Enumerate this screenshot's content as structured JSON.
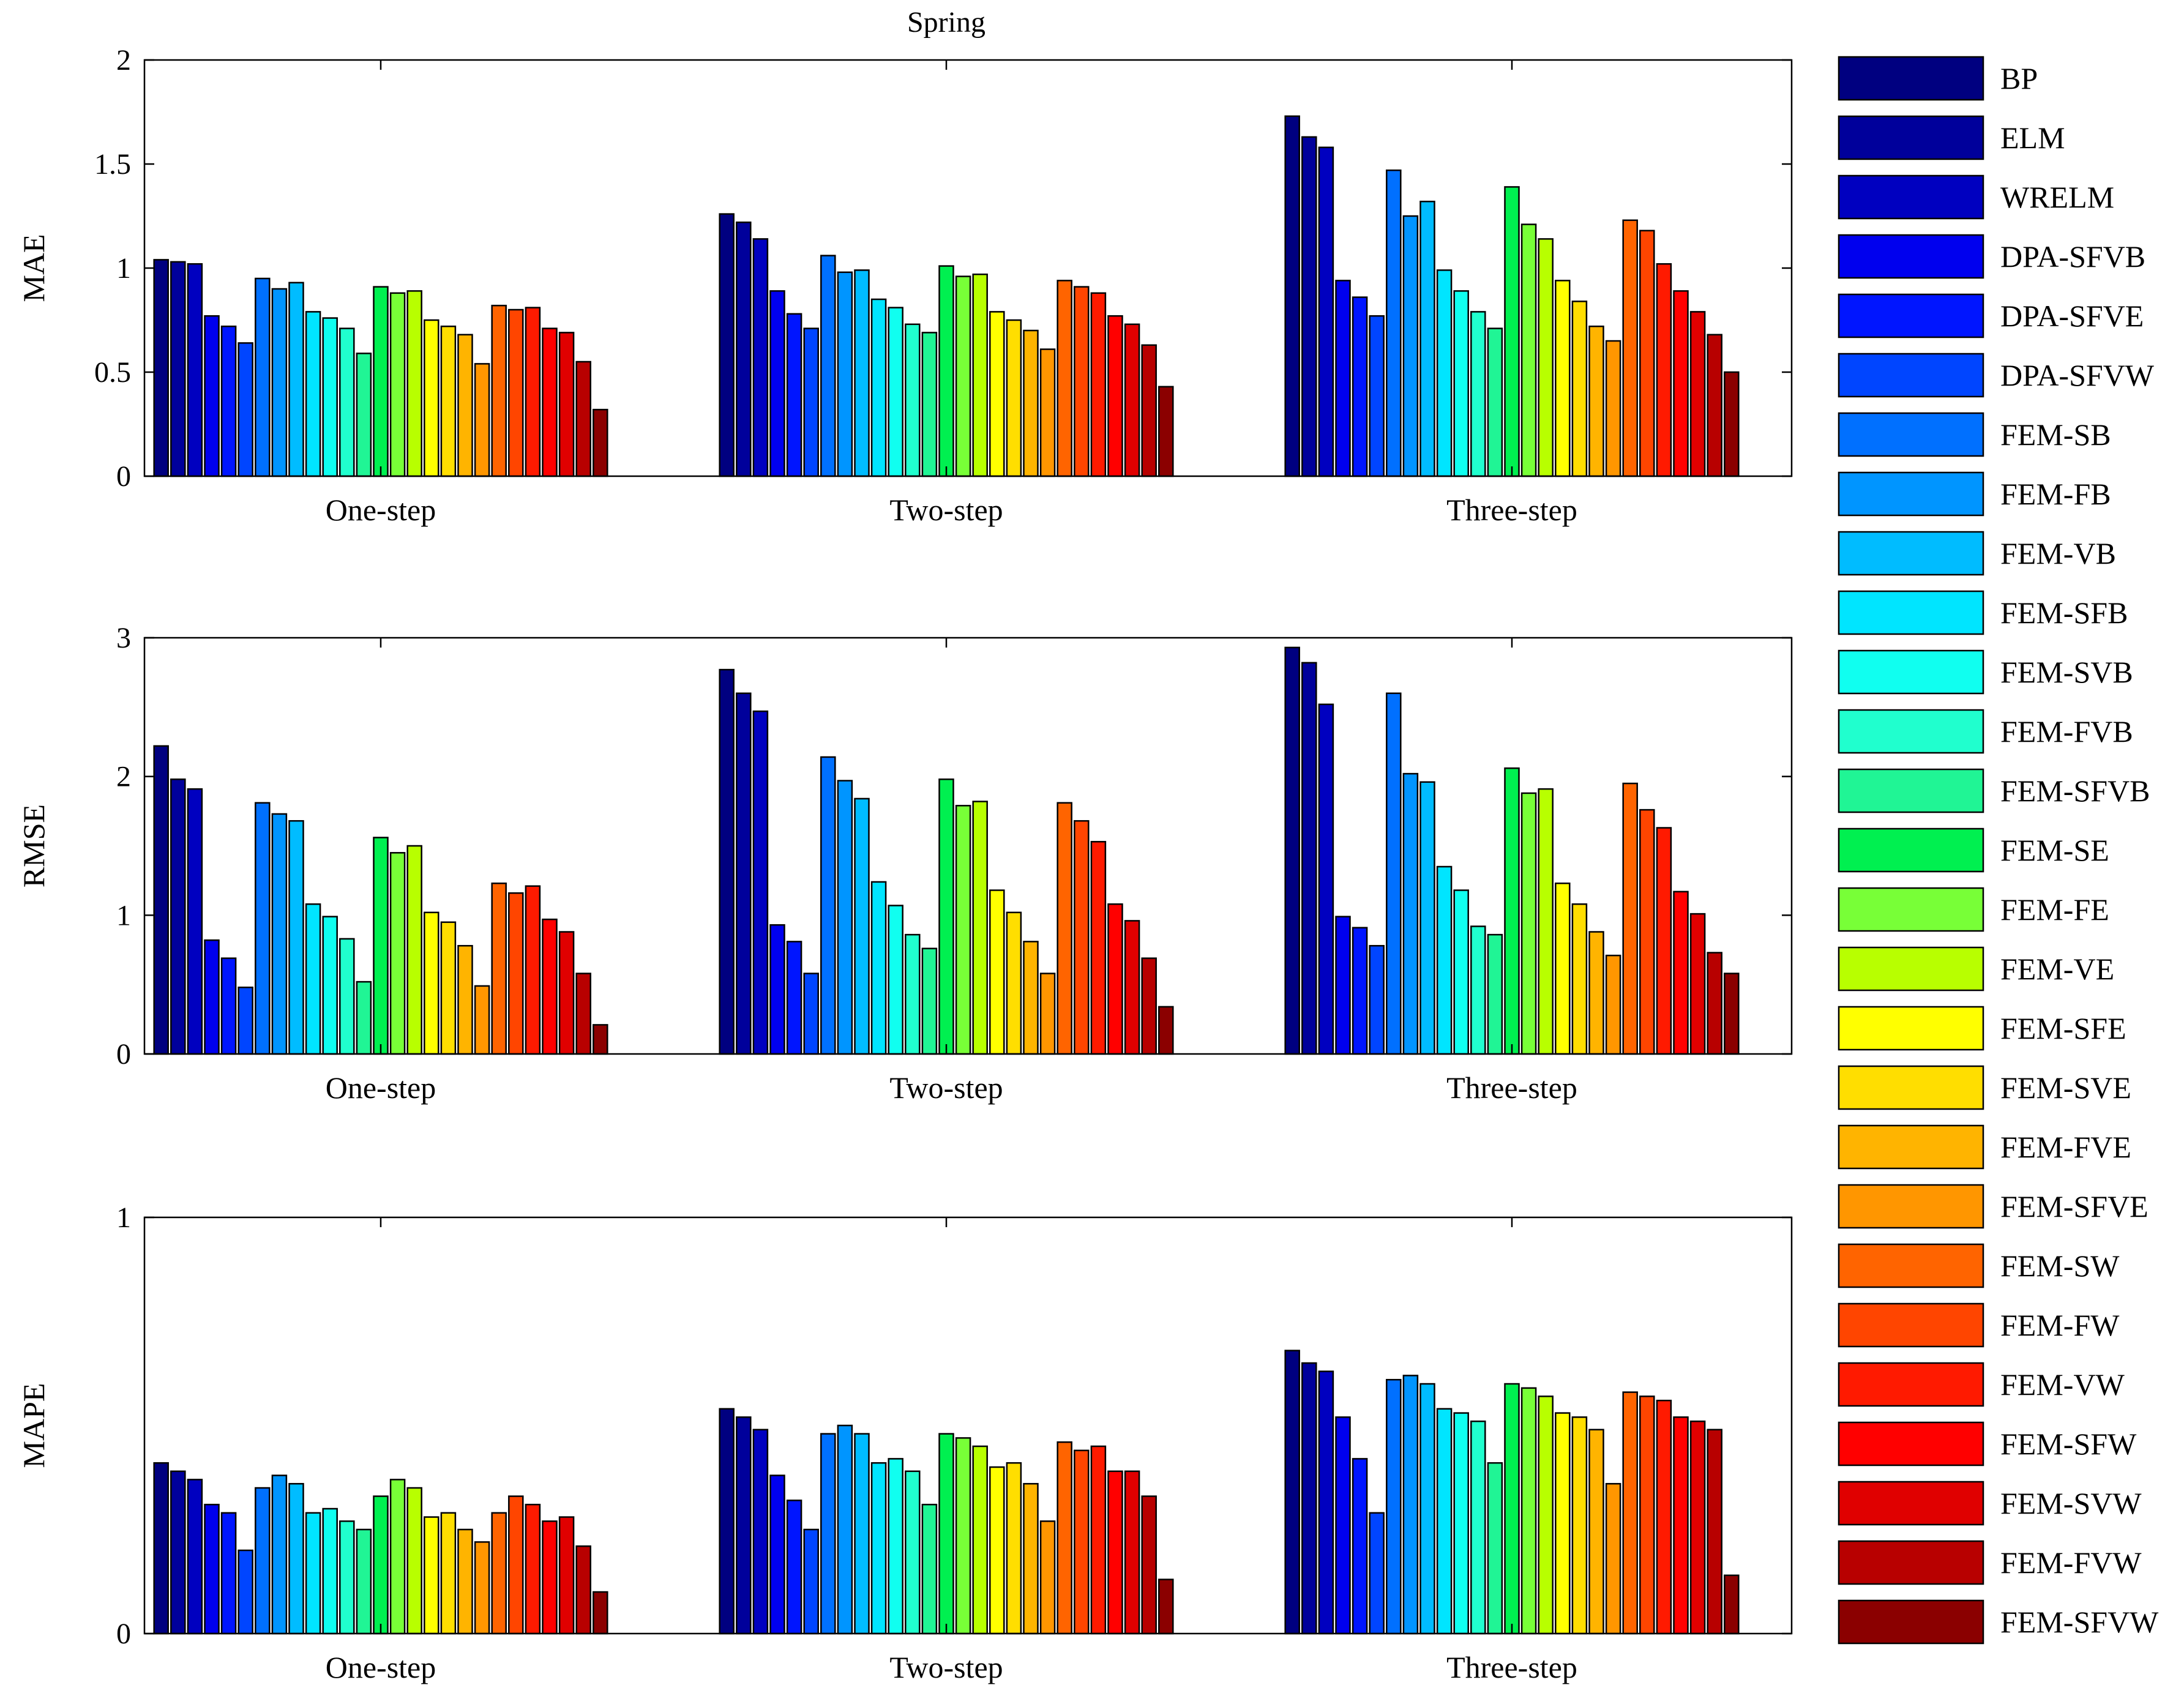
{
  "figure_title": "Spring",
  "chart_data": [
    {
      "type": "bar",
      "title": "Spring",
      "ylabel": "MAE",
      "xlabel": "",
      "ylim": [
        0,
        2
      ],
      "yticks": [
        0,
        0.5,
        1,
        1.5,
        2
      ],
      "ytick_labels": [
        "0",
        "0.5",
        "1",
        "1.5",
        "2"
      ],
      "categories": [
        "One-step",
        "Two-step",
        "Three-step"
      ],
      "values_by_category": [
        [
          1.04,
          1.03,
          1.02,
          0.77,
          0.72,
          0.64,
          0.95,
          0.9,
          0.93,
          0.79,
          0.76,
          0.71,
          0.59,
          0.91,
          0.88,
          0.89,
          0.75,
          0.72,
          0.68,
          0.54,
          0.82,
          0.8,
          0.81,
          0.71,
          0.69,
          0.55,
          0.32
        ],
        [
          1.26,
          1.22,
          1.14,
          0.89,
          0.78,
          0.71,
          1.06,
          0.98,
          0.99,
          0.85,
          0.81,
          0.73,
          0.69,
          1.01,
          0.96,
          0.97,
          0.79,
          0.75,
          0.7,
          0.61,
          0.94,
          0.91,
          0.88,
          0.77,
          0.73,
          0.63,
          0.43
        ],
        [
          1.73,
          1.63,
          1.58,
          0.94,
          0.86,
          0.77,
          1.47,
          1.25,
          1.32,
          0.99,
          0.89,
          0.79,
          0.71,
          1.39,
          1.21,
          1.14,
          0.94,
          0.84,
          0.72,
          0.65,
          1.23,
          1.18,
          1.02,
          0.89,
          0.79,
          0.68,
          0.5
        ]
      ]
    },
    {
      "type": "bar",
      "ylabel": "RMSE",
      "xlabel": "",
      "ylim": [
        0,
        3
      ],
      "yticks": [
        0,
        1,
        2,
        3
      ],
      "ytick_labels": [
        "0",
        "1",
        "2",
        "3"
      ],
      "categories": [
        "One-step",
        "Two-step",
        "Three-step"
      ],
      "values_by_category": [
        [
          2.22,
          1.98,
          1.91,
          0.82,
          0.69,
          0.48,
          1.81,
          1.73,
          1.68,
          1.08,
          0.99,
          0.83,
          0.52,
          1.56,
          1.45,
          1.5,
          1.02,
          0.95,
          0.78,
          0.49,
          1.23,
          1.16,
          1.21,
          0.97,
          0.88,
          0.58,
          0.21
        ],
        [
          2.77,
          2.6,
          2.47,
          0.93,
          0.81,
          0.58,
          2.14,
          1.97,
          1.84,
          1.24,
          1.07,
          0.86,
          0.76,
          1.98,
          1.79,
          1.82,
          1.18,
          1.02,
          0.81,
          0.58,
          1.81,
          1.68,
          1.53,
          1.08,
          0.96,
          0.69,
          0.34
        ],
        [
          2.93,
          2.82,
          2.52,
          0.99,
          0.91,
          0.78,
          2.6,
          2.02,
          1.96,
          1.35,
          1.18,
          0.92,
          0.86,
          2.06,
          1.88,
          1.91,
          1.23,
          1.08,
          0.88,
          0.71,
          1.95,
          1.76,
          1.63,
          1.17,
          1.01,
          0.73,
          0.58
        ]
      ]
    },
    {
      "type": "bar",
      "ylabel": "MAPE",
      "xlabel": "",
      "ylim": [
        0,
        1
      ],
      "yticks": [
        0,
        1
      ],
      "ytick_labels": [
        "0",
        "1"
      ],
      "categories": [
        "One-step",
        "Two-step",
        "Three-step"
      ],
      "values_by_category": [
        [
          0.41,
          0.39,
          0.37,
          0.31,
          0.29,
          0.2,
          0.35,
          0.38,
          0.36,
          0.29,
          0.3,
          0.27,
          0.25,
          0.33,
          0.37,
          0.35,
          0.28,
          0.29,
          0.25,
          0.22,
          0.29,
          0.33,
          0.31,
          0.27,
          0.28,
          0.21,
          0.1
        ],
        [
          0.54,
          0.52,
          0.49,
          0.38,
          0.32,
          0.25,
          0.48,
          0.5,
          0.48,
          0.41,
          0.42,
          0.39,
          0.31,
          0.48,
          0.47,
          0.45,
          0.4,
          0.41,
          0.36,
          0.27,
          0.46,
          0.44,
          0.45,
          0.39,
          0.39,
          0.33,
          0.13
        ],
        [
          0.68,
          0.65,
          0.63,
          0.52,
          0.42,
          0.29,
          0.61,
          0.62,
          0.6,
          0.54,
          0.53,
          0.51,
          0.41,
          0.6,
          0.59,
          0.57,
          0.53,
          0.52,
          0.49,
          0.36,
          0.58,
          0.57,
          0.56,
          0.52,
          0.51,
          0.49,
          0.14
        ]
      ]
    }
  ],
  "legend": {
    "placement": "right",
    "items": [
      {
        "label": "BP",
        "color": "#000080"
      },
      {
        "label": "ELM",
        "color": "#00009b"
      },
      {
        "label": "WRELM",
        "color": "#0000c0"
      },
      {
        "label": "DPA-SFVB",
        "color": "#0000ee"
      },
      {
        "label": "DPA-SFVE",
        "color": "#0015ff"
      },
      {
        "label": "DPA-SFVW",
        "color": "#0045ff"
      },
      {
        "label": "FEM-SB",
        "color": "#0070ff"
      },
      {
        "label": "FEM-FB",
        "color": "#0095ff"
      },
      {
        "label": "FEM-VB",
        "color": "#00bcff"
      },
      {
        "label": "FEM-SFB",
        "color": "#00e5ff"
      },
      {
        "label": "FEM-SVB",
        "color": "#10fff0"
      },
      {
        "label": "FEM-FVB",
        "color": "#20ffce"
      },
      {
        "label": "FEM-SFVB",
        "color": "#20f595"
      },
      {
        "label": "FEM-SE",
        "color": "#00f050"
      },
      {
        "label": "FEM-FE",
        "color": "#78ff37"
      },
      {
        "label": "FEM-VE",
        "color": "#b8ff00"
      },
      {
        "label": "FEM-SFE",
        "color": "#ffff00"
      },
      {
        "label": "FEM-SVE",
        "color": "#ffde00"
      },
      {
        "label": "FEM-FVE",
        "color": "#ffb400"
      },
      {
        "label": "FEM-SFVE",
        "color": "#ff9600"
      },
      {
        "label": "FEM-SW",
        "color": "#ff6400"
      },
      {
        "label": "FEM-FW",
        "color": "#ff4500"
      },
      {
        "label": "FEM-VW",
        "color": "#ff1a00"
      },
      {
        "label": "FEM-SFW",
        "color": "#ff0000"
      },
      {
        "label": "FEM-SVW",
        "color": "#e00000"
      },
      {
        "label": "FEM-FVW",
        "color": "#b80000"
      },
      {
        "label": "FEM-SFVW",
        "color": "#8b0000"
      }
    ]
  }
}
